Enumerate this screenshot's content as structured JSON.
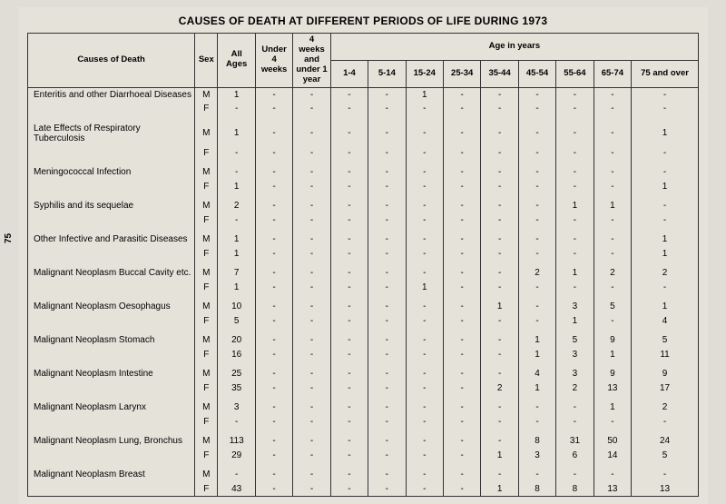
{
  "title": "CAUSES OF DEATH AT DIFFERENT PERIODS OF LIFE DURING 1973",
  "page_number": "75",
  "columns": {
    "cause": "Causes of Death",
    "sex": "Sex",
    "all_ages": "All\nAges",
    "under_4w": "Under\n4 weeks",
    "w4_1y": "4 weeks\nand under\n1 year",
    "age_span": "Age in years",
    "ages": [
      "1-4",
      "5-14",
      "15-24",
      "25-34",
      "35-44",
      "45-54",
      "55-64",
      "65-74",
      "75 and over"
    ]
  },
  "style": {
    "background": "#e5e2da",
    "border_color": "#333333",
    "font_family": "Arial, Helvetica, sans-serif",
    "title_fontsize": 12,
    "body_fontsize": 10,
    "header_fontsize": 9.5,
    "dash": "-"
  },
  "rows": [
    {
      "cause": "Enteritis and other Diarrhoeal Diseases",
      "sex": "M",
      "vals": [
        "1",
        "-",
        "-",
        "-",
        "-",
        "1",
        "-",
        "-",
        "-",
        "-",
        "-",
        "-"
      ]
    },
    {
      "cause": "",
      "sex": "F",
      "vals": [
        "-",
        "-",
        "-",
        "-",
        "-",
        "-",
        "-",
        "-",
        "-",
        "-",
        "-",
        "-"
      ],
      "spacer_after": true
    },
    {
      "cause": "Late Effects of Respiratory Tuberculosis",
      "sex": "M",
      "vals": [
        "1",
        "-",
        "-",
        "-",
        "-",
        "-",
        "-",
        "-",
        "-",
        "-",
        "-",
        "1"
      ]
    },
    {
      "cause": "",
      "sex": "F",
      "vals": [
        "-",
        "-",
        "-",
        "-",
        "-",
        "-",
        "-",
        "-",
        "-",
        "-",
        "-",
        "-"
      ],
      "spacer_after": true
    },
    {
      "cause": "Meningococcal Infection",
      "sex": "M",
      "vals": [
        "-",
        "-",
        "-",
        "-",
        "-",
        "-",
        "-",
        "-",
        "-",
        "-",
        "-",
        "-"
      ]
    },
    {
      "cause": "",
      "sex": "F",
      "vals": [
        "1",
        "-",
        "-",
        "-",
        "-",
        "-",
        "-",
        "-",
        "-",
        "-",
        "-",
        "1"
      ],
      "spacer_after": true
    },
    {
      "cause": "Syphilis and its sequelae",
      "sex": "M",
      "vals": [
        "2",
        "-",
        "-",
        "-",
        "-",
        "-",
        "-",
        "-",
        "-",
        "1",
        "1",
        "-"
      ]
    },
    {
      "cause": "",
      "sex": "F",
      "vals": [
        "-",
        "-",
        "-",
        "-",
        "-",
        "-",
        "-",
        "-",
        "-",
        "-",
        "-",
        "-"
      ],
      "spacer_after": true
    },
    {
      "cause": "Other Infective and Parasitic Diseases",
      "sex": "M",
      "vals": [
        "1",
        "-",
        "-",
        "-",
        "-",
        "-",
        "-",
        "-",
        "-",
        "-",
        "-",
        "1"
      ]
    },
    {
      "cause": "",
      "sex": "F",
      "vals": [
        "1",
        "-",
        "-",
        "-",
        "-",
        "-",
        "-",
        "-",
        "-",
        "-",
        "-",
        "1"
      ],
      "spacer_after": true
    },
    {
      "cause": "Malignant Neoplasm Buccal Cavity etc.",
      "sex": "M",
      "vals": [
        "7",
        "-",
        "-",
        "-",
        "-",
        "-",
        "-",
        "-",
        "2",
        "1",
        "2",
        "2"
      ]
    },
    {
      "cause": "",
      "sex": "F",
      "vals": [
        "1",
        "-",
        "-",
        "-",
        "-",
        "1",
        "-",
        "-",
        "-",
        "-",
        "-",
        "-"
      ],
      "spacer_after": true
    },
    {
      "cause": "Malignant Neoplasm Oesophagus",
      "sex": "M",
      "vals": [
        "10",
        "-",
        "-",
        "-",
        "-",
        "-",
        "-",
        "1",
        "-",
        "3",
        "5",
        "1"
      ]
    },
    {
      "cause": "",
      "sex": "F",
      "vals": [
        "5",
        "-",
        "-",
        "-",
        "-",
        "-",
        "-",
        "-",
        "-",
        "1",
        "-",
        "4"
      ],
      "spacer_after": true
    },
    {
      "cause": "Malignant Neoplasm Stomach",
      "sex": "M",
      "vals": [
        "20",
        "-",
        "-",
        "-",
        "-",
        "-",
        "-",
        "-",
        "1",
        "5",
        "9",
        "5"
      ]
    },
    {
      "cause": "",
      "sex": "F",
      "vals": [
        "16",
        "-",
        "-",
        "-",
        "-",
        "-",
        "-",
        "-",
        "1",
        "3",
        "1",
        "11"
      ],
      "spacer_after": true
    },
    {
      "cause": "Malignant Neoplasm Intestine",
      "sex": "M",
      "vals": [
        "25",
        "-",
        "-",
        "-",
        "-",
        "-",
        "-",
        "-",
        "4",
        "3",
        "9",
        "9"
      ]
    },
    {
      "cause": "",
      "sex": "F",
      "vals": [
        "35",
        "-",
        "-",
        "-",
        "-",
        "-",
        "-",
        "2",
        "1",
        "2",
        "13",
        "17"
      ],
      "spacer_after": true
    },
    {
      "cause": "Malignant Neoplasm Larynx",
      "sex": "M",
      "vals": [
        "3",
        "-",
        "-",
        "-",
        "-",
        "-",
        "-",
        "-",
        "-",
        "-",
        "1",
        "2"
      ]
    },
    {
      "cause": "",
      "sex": "F",
      "vals": [
        "-",
        "-",
        "-",
        "-",
        "-",
        "-",
        "-",
        "-",
        "-",
        "-",
        "-",
        "-"
      ],
      "spacer_after": true
    },
    {
      "cause": "Malignant Neoplasm Lung, Bronchus",
      "sex": "M",
      "vals": [
        "113",
        "-",
        "-",
        "-",
        "-",
        "-",
        "-",
        "-",
        "8",
        "31",
        "50",
        "24"
      ]
    },
    {
      "cause": "",
      "sex": "F",
      "vals": [
        "29",
        "-",
        "-",
        "-",
        "-",
        "-",
        "-",
        "1",
        "3",
        "6",
        "14",
        "5"
      ],
      "spacer_after": true
    },
    {
      "cause": "Malignant Neoplasm Breast",
      "sex": "M",
      "vals": [
        "-",
        "-",
        "-",
        "-",
        "-",
        "-",
        "-",
        "-",
        "-",
        "-",
        "-",
        "-"
      ]
    },
    {
      "cause": "",
      "sex": "F",
      "vals": [
        "43",
        "-",
        "-",
        "-",
        "-",
        "-",
        "-",
        "1",
        "8",
        "8",
        "13",
        "13"
      ]
    }
  ]
}
